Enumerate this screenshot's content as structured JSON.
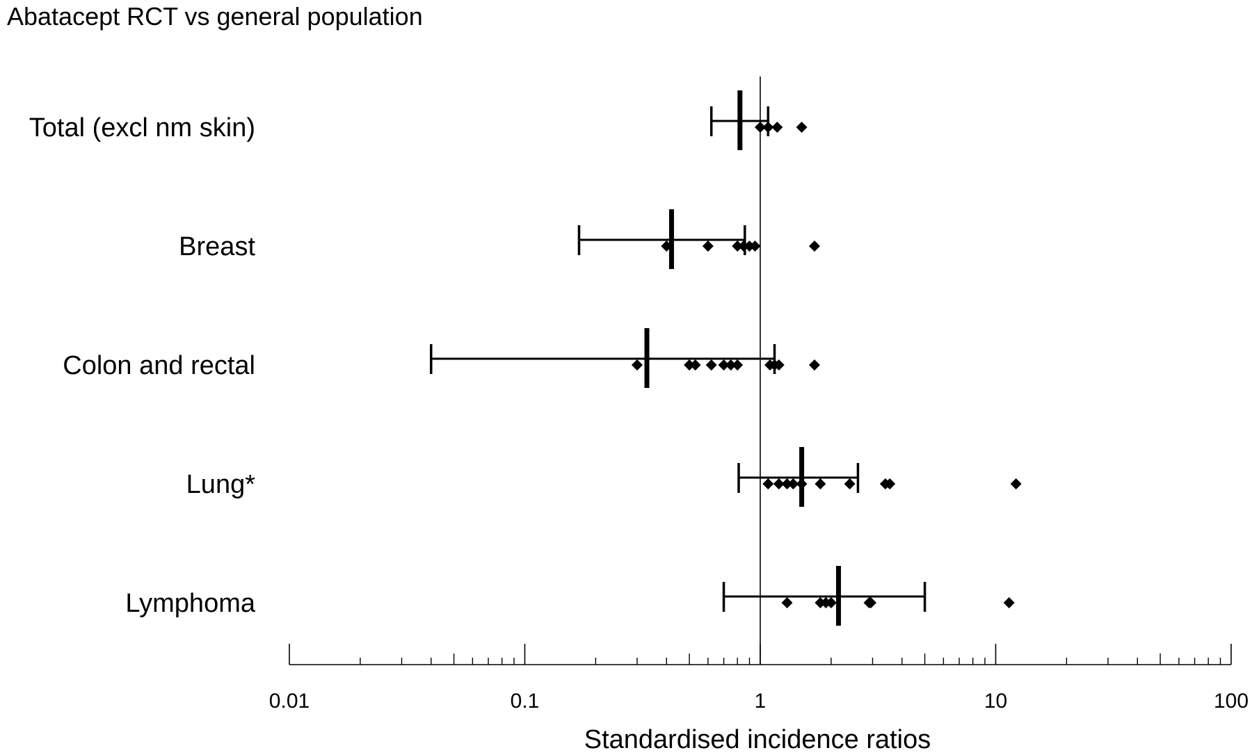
{
  "chart_data": {
    "type": "forest",
    "title": "Abatacept RCT vs general population",
    "xlabel": "Standardised incidence ratios",
    "x_scale": "log",
    "xlim": [
      0.01,
      100
    ],
    "x_ticks": [
      {
        "value": 0.01,
        "label": "0.01"
      },
      {
        "value": 0.1,
        "label": "0.1"
      },
      {
        "value": 1,
        "label": "1"
      },
      {
        "value": 10,
        "label": "10"
      },
      {
        "value": 100,
        "label": "100"
      }
    ],
    "reference_line": 1,
    "rows": [
      {
        "label": "Total (excl nm skin)",
        "estimate": 0.82,
        "ci_low": 0.62,
        "ci_high": 1.08,
        "points": [
          1.0,
          1.08,
          1.18,
          1.5
        ]
      },
      {
        "label": "Breast",
        "estimate": 0.42,
        "ci_low": 0.17,
        "ci_high": 0.86,
        "points": [
          0.4,
          0.6,
          0.8,
          0.85,
          0.9,
          0.95,
          1.7
        ]
      },
      {
        "label": "Colon and rectal",
        "estimate": 0.33,
        "ci_low": 0.04,
        "ci_high": 1.15,
        "points": [
          0.3,
          0.5,
          0.53,
          0.62,
          0.7,
          0.75,
          0.8,
          1.1,
          1.15,
          1.2,
          1.7
        ]
      },
      {
        "label": "Lung*",
        "estimate": 1.5,
        "ci_low": 0.81,
        "ci_high": 2.6,
        "points": [
          1.08,
          1.2,
          1.3,
          1.38,
          1.5,
          1.8,
          2.4,
          3.4,
          3.55,
          12.2
        ]
      },
      {
        "label": "Lymphoma",
        "estimate": 2.15,
        "ci_low": 0.7,
        "ci_high": 5.0,
        "points": [
          1.3,
          1.8,
          1.9,
          2.0,
          2.9,
          2.95,
          11.4
        ]
      }
    ]
  }
}
